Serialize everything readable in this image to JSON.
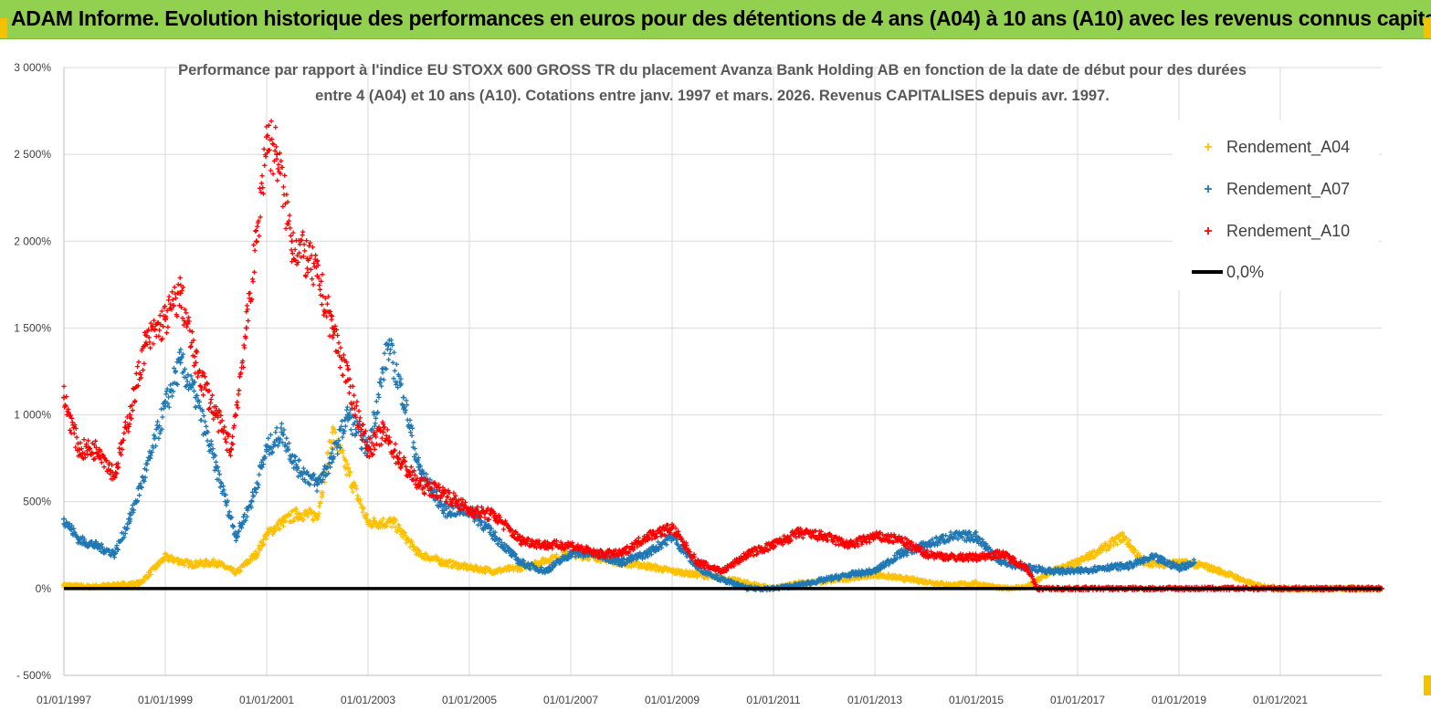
{
  "banner": {
    "title": "ADAM Informe. Evolution historique des performances en euros pour des détentions de 4 ans (A04) à 10 ans (A10) avec les revenus connus capitalisés"
  },
  "chart_data": {
    "type": "scatter",
    "title_line1": "Performance par rapport à l'indice EU STOXX 600 GROSS TR  du placement  Avanza Bank Holding AB en fonction de la date de début pour des durées",
    "title_line2": "entre 4 (A04) et 10 ans (A10).  Cotations entre janv. 1997 et mars. 2026. Revenus CAPITALISES depuis avr. 1997.",
    "xlabel": "",
    "ylabel": "",
    "x_range": [
      1997.0,
      2023.0
    ],
    "ylim": [
      -500,
      3000
    ],
    "y_ticks": [
      -500,
      0,
      500,
      1000,
      1500,
      2000,
      2500,
      3000
    ],
    "y_tick_labels": [
      "- 500%",
      "0%",
      "500%",
      "1 000%",
      "1 500%",
      "2 000%",
      "2 500%",
      "3 000%"
    ],
    "x_ticks": [
      1997,
      1999,
      2001,
      2003,
      2005,
      2007,
      2009,
      2011,
      2013,
      2015,
      2017,
      2019,
      2021
    ],
    "x_tick_labels": [
      "01/01/1997",
      "01/01/1999",
      "01/01/2001",
      "01/01/2003",
      "01/01/2005",
      "01/01/2007",
      "01/01/2009",
      "01/01/2011",
      "01/01/2013",
      "01/01/2015",
      "01/01/2017",
      "01/01/2019",
      "01/01/2021"
    ],
    "grid": true,
    "legend_position": "top-right",
    "series": [
      {
        "name": "Rendement_A04",
        "color": "#ffc000",
        "marker": "+",
        "x": [
          1997.0,
          1997.5,
          1998.0,
          1998.5,
          1999.0,
          1999.5,
          2000.0,
          2000.4,
          2000.8,
          2001.0,
          2001.3,
          2001.6,
          2002.0,
          2002.3,
          2002.7,
          2003.0,
          2003.5,
          2004.0,
          2004.5,
          2005.0,
          2005.5,
          2006.0,
          2006.5,
          2007.0,
          2007.5,
          2008.0,
          2008.5,
          2009.0,
          2009.5,
          2010.0,
          2010.5,
          2011.0,
          2011.5,
          2012.0,
          2012.5,
          2013.0,
          2013.5,
          2014.0,
          2014.5,
          2015.0,
          2015.5,
          2016.0,
          2016.5,
          2017.0,
          2017.5,
          2017.9,
          2018.3,
          2018.7,
          2019.0,
          2019.5,
          2020.0,
          2020.5,
          2021.0,
          2021.5,
          2022.0,
          2022.5,
          2023.0
        ],
        "values": [
          20,
          10,
          20,
          30,
          180,
          140,
          150,
          90,
          200,
          310,
          380,
          430,
          420,
          900,
          600,
          380,
          380,
          200,
          150,
          120,
          100,
          120,
          160,
          200,
          180,
          150,
          130,
          100,
          80,
          60,
          30,
          0,
          30,
          40,
          60,
          80,
          60,
          40,
          20,
          30,
          0,
          10,
          100,
          150,
          230,
          300,
          150,
          140,
          150,
          130,
          80,
          20,
          0,
          0,
          0,
          0,
          0
        ]
      },
      {
        "name": "Rendement_A07",
        "color": "#1f77b4",
        "marker": "+",
        "x": [
          1997.0,
          1997.3,
          1997.6,
          1998.0,
          1998.3,
          1998.7,
          1999.0,
          1999.3,
          1999.6,
          2000.0,
          2000.4,
          2000.7,
          2001.0,
          2001.3,
          2001.6,
          2002.0,
          2002.3,
          2002.6,
          2003.0,
          2003.4,
          2003.7,
          2004.0,
          2004.5,
          2005.0,
          2005.5,
          2006.0,
          2006.5,
          2007.0,
          2007.5,
          2008.0,
          2008.5,
          2009.0,
          2009.5,
          2010.0,
          2010.5,
          2011.0,
          2011.5,
          2012.0,
          2012.5,
          2013.0,
          2013.5,
          2014.0,
          2014.5,
          2015.0,
          2015.5,
          2016.0,
          2016.5,
          2017.0,
          2017.5,
          2018.0,
          2018.5,
          2019.0,
          2019.3
        ],
        "values": [
          400,
          280,
          250,
          200,
          400,
          750,
          1050,
          1300,
          1100,
          700,
          300,
          500,
          800,
          900,
          700,
          600,
          750,
          1000,
          800,
          1400,
          1100,
          700,
          450,
          450,
          300,
          150,
          100,
          200,
          200,
          150,
          200,
          300,
          120,
          50,
          0,
          0,
          20,
          50,
          80,
          100,
          200,
          250,
          300,
          300,
          150,
          120,
          100,
          100,
          120,
          130,
          180,
          120,
          150
        ]
      },
      {
        "name": "Rendement_A10",
        "color": "#ff0000",
        "marker": "+",
        "x": [
          1997.0,
          1997.3,
          1997.7,
          1998.0,
          1998.3,
          1998.6,
          1999.0,
          1999.3,
          1999.6,
          2000.0,
          2000.3,
          2000.6,
          2000.8,
          2001.0,
          2001.2,
          2001.5,
          2001.8,
          2002.0,
          2002.3,
          2002.6,
          2003.0,
          2003.3,
          2003.6,
          2004.0,
          2004.5,
          2005.0,
          2005.5,
          2006.0,
          2006.5,
          2007.0,
          2007.5,
          2008.0,
          2008.5,
          2009.0,
          2009.5,
          2010.0,
          2010.5,
          2011.0,
          2011.5,
          2012.0,
          2012.5,
          2013.0,
          2013.5,
          2014.0,
          2014.5,
          2015.0,
          2015.5,
          2016.0,
          2016.2,
          2017.0,
          2018.0,
          2019.0,
          2020.0,
          2021.0,
          2022.0,
          2023.0
        ],
        "values": [
          1100,
          800,
          800,
          650,
          1000,
          1400,
          1550,
          1700,
          1300,
          1000,
          800,
          1500,
          2000,
          2600,
          2500,
          2000,
          1900,
          1800,
          1500,
          1200,
          800,
          900,
          750,
          600,
          550,
          450,
          420,
          280,
          250,
          250,
          200,
          200,
          300,
          350,
          150,
          100,
          200,
          250,
          320,
          300,
          250,
          300,
          280,
          200,
          180,
          180,
          200,
          120,
          0,
          0,
          0,
          0,
          0,
          0,
          0,
          0
        ]
      },
      {
        "name": "0,0%",
        "color": "#000000",
        "marker": "line",
        "x": [
          1997.0,
          2023.0
        ],
        "values": [
          0,
          0
        ]
      }
    ]
  }
}
